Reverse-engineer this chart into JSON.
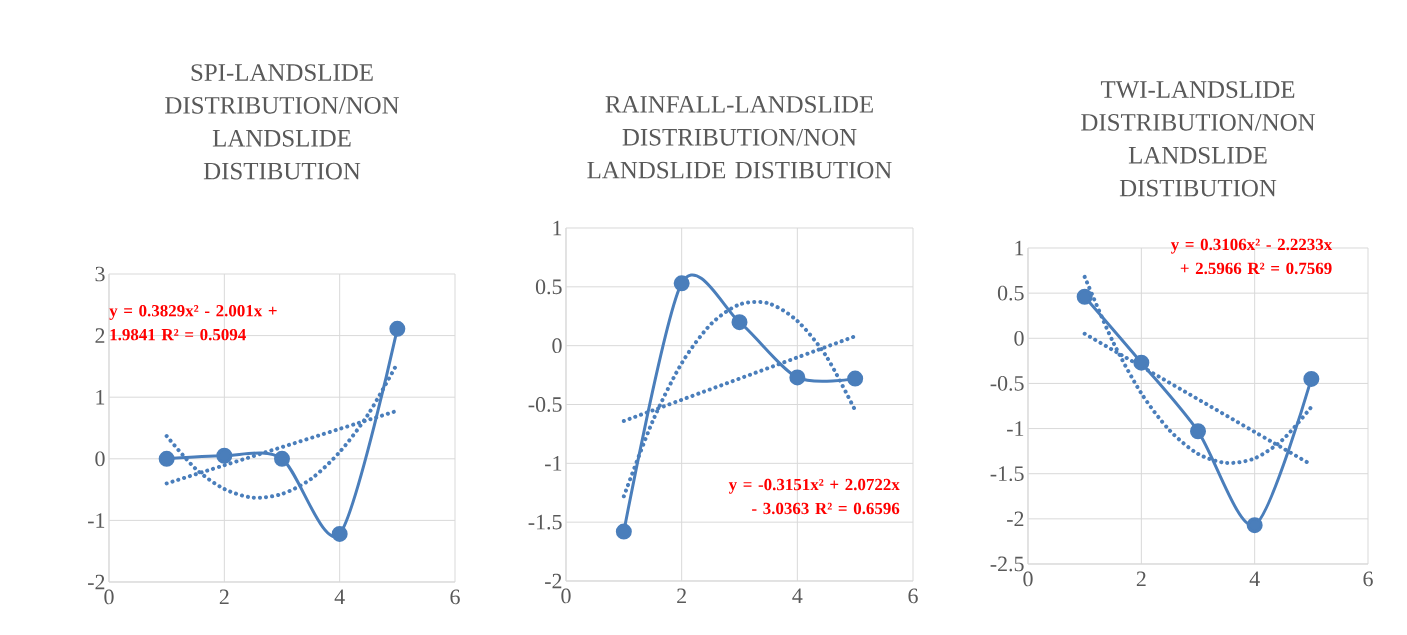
{
  "chart_data": [
    {
      "type": "line",
      "title": "SPI-LANDSLIDE DISTRIBUTION/NON LANDSLIDE DISTIBUTION",
      "x": [
        1,
        2,
        3,
        4,
        5
      ],
      "xlim": [
        0,
        6
      ],
      "xticks": [
        0,
        2,
        4,
        6
      ],
      "ylim": [
        -2,
        3
      ],
      "yticks": [
        -2,
        -1,
        0,
        1,
        2,
        3
      ],
      "grid": true,
      "series": [
        {
          "color": "#4a7ebb",
          "marker": "circle",
          "line_style": "solid",
          "values": [
            0,
            0.05,
            0,
            -1.22,
            2.11
          ]
        },
        {
          "color": "#4a7ebb",
          "marker": "none",
          "line_style": "dotted",
          "x": [
            1,
            5
          ],
          "values": [
            -0.4,
            0.78
          ]
        },
        {
          "color": "#4a7ebb",
          "marker": "none",
          "line_style": "dotted",
          "x": [
            1,
            1.5,
            2,
            2.5,
            3,
            3.5,
            4,
            4.5,
            5
          ],
          "values": [
            0.37,
            -0.16,
            -0.49,
            -0.63,
            -0.57,
            -0.33,
            0.11,
            0.73,
            1.55
          ]
        }
      ],
      "annotations": [
        "y = 0.3829x² - 2.001x + 1.9841 R² = 0.5094"
      ]
    },
    {
      "type": "line",
      "title": "RAINFALL-LANDSLIDE DISTRIBUTION/NON LANDSLIDE DISTIBUTION",
      "x": [
        1,
        2,
        3,
        4,
        5
      ],
      "xlim": [
        0,
        6
      ],
      "xticks": [
        0,
        2,
        4,
        6
      ],
      "ylim": [
        -2,
        1
      ],
      "yticks": [
        -2,
        -1.5,
        -1,
        -0.5,
        0,
        0.5,
        1
      ],
      "grid": true,
      "series": [
        {
          "color": "#4a7ebb",
          "marker": "circle",
          "line_style": "solid",
          "values": [
            -1.58,
            0.53,
            0.2,
            -0.27,
            -0.28
          ]
        },
        {
          "color": "#4a7ebb",
          "marker": "none",
          "line_style": "dotted",
          "x": [
            1,
            5
          ],
          "values": [
            -0.64,
            0.08
          ]
        },
        {
          "color": "#4a7ebb",
          "marker": "none",
          "line_style": "dotted",
          "x": [
            1,
            1.5,
            2,
            2.5,
            3,
            3.5,
            4,
            4.5,
            5
          ],
          "values": [
            -1.28,
            -0.64,
            -0.15,
            0.18,
            0.35,
            0.36,
            0.21,
            -0.09,
            -0.55
          ]
        }
      ],
      "annotations": [
        "y = -0.3151x² + 2.0722x - 3.0363  R² = 0.6596"
      ]
    },
    {
      "type": "line",
      "title": "TWI-LANDSLIDE DISTRIBUTION/NON LANDSLIDE DISTIBUTION",
      "x": [
        1,
        2,
        3,
        4,
        5
      ],
      "xlim": [
        0,
        6
      ],
      "xticks": [
        0,
        2,
        4,
        6
      ],
      "ylim": [
        -2.5,
        1
      ],
      "yticks": [
        -2.5,
        -2,
        -1.5,
        -1,
        -0.5,
        0,
        0.5,
        1
      ],
      "grid": true,
      "series": [
        {
          "color": "#4a7ebb",
          "marker": "circle",
          "line_style": "solid",
          "values": [
            0.46,
            -0.27,
            -1.03,
            -2.07,
            -0.45
          ]
        },
        {
          "color": "#4a7ebb",
          "marker": "none",
          "line_style": "dotted",
          "x": [
            1,
            5
          ],
          "values": [
            0.05,
            -1.4
          ]
        },
        {
          "color": "#4a7ebb",
          "marker": "none",
          "line_style": "dotted",
          "x": [
            1,
            1.5,
            2,
            2.5,
            3,
            3.5,
            4,
            4.5,
            5
          ],
          "values": [
            0.68,
            -0.04,
            -0.61,
            -1.02,
            -1.28,
            -1.38,
            -1.33,
            -1.12,
            -0.76
          ]
        }
      ],
      "annotations": [
        "y = 0.3106x² - 2.2233x + 2.5966  R² = 0.7569"
      ]
    }
  ]
}
